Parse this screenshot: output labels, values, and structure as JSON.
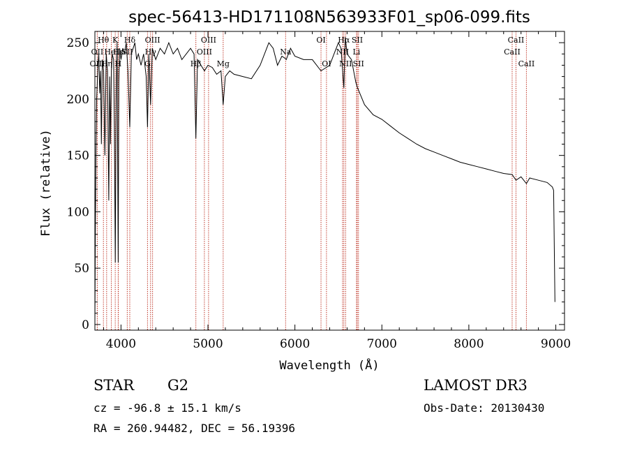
{
  "chart_data": {
    "type": "line",
    "title": "spec-56413-HD171108N563933F01_sp06-099.fits",
    "xlabel": "Wavelength (Å)",
    "ylabel": "Flux (relative)",
    "xlim": [
      3700,
      9100
    ],
    "ylim": [
      -5,
      260
    ],
    "xticks": [
      4000,
      5000,
      6000,
      7000,
      8000,
      9000
    ],
    "xtick_labels": [
      "4000",
      "5000",
      "6000",
      "7000",
      "8000",
      "9000"
    ],
    "yticks": [
      0,
      50,
      100,
      150,
      200,
      250
    ],
    "ytick_labels": [
      "0",
      "50",
      "100",
      "150",
      "200",
      "250"
    ],
    "series": [
      {
        "name": "spectrum",
        "x": [
          3700,
          3705,
          3712,
          3720,
          3728,
          3735,
          3745,
          3755,
          3765,
          3775,
          3785,
          3800,
          3815,
          3830,
          3845,
          3860,
          3870,
          3880,
          3889,
          3900,
          3915,
          3925,
          3934,
          3945,
          3955,
          3968,
          3975,
          3985,
          4000,
          4020,
          4040,
          4060,
          4080,
          4101,
          4120,
          4140,
          4160,
          4180,
          4200,
          4230,
          4260,
          4290,
          4305,
          4320,
          4340,
          4360,
          4400,
          4450,
          4500,
          4550,
          4600,
          4650,
          4700,
          4750,
          4800,
          4840,
          4861,
          4880,
          4920,
          4960,
          5000,
          5050,
          5100,
          5150,
          5175,
          5200,
          5250,
          5300,
          5400,
          5500,
          5600,
          5700,
          5750,
          5800,
          5850,
          5890,
          5900,
          5950,
          6000,
          6100,
          6200,
          6300,
          6400,
          6450,
          6500,
          6530,
          6563,
          6580,
          6600,
          6650,
          6700,
          6720,
          6800,
          6900,
          7000,
          7100,
          7200,
          7300,
          7400,
          7500,
          7600,
          7700,
          7800,
          7900,
          8000,
          8100,
          8200,
          8300,
          8400,
          8498,
          8542,
          8600,
          8662,
          8700,
          8800,
          8900,
          8960,
          8975,
          8990
        ],
        "values": [
          0,
          80,
          150,
          200,
          215,
          230,
          240,
          205,
          225,
          160,
          235,
          225,
          150,
          240,
          225,
          110,
          220,
          160,
          225,
          240,
          235,
          170,
          55,
          205,
          250,
          55,
          215,
          245,
          235,
          245,
          240,
          250,
          225,
          175,
          240,
          245,
          250,
          235,
          240,
          230,
          240,
          220,
          175,
          240,
          195,
          245,
          235,
          245,
          240,
          250,
          240,
          245,
          235,
          240,
          245,
          240,
          165,
          235,
          230,
          225,
          230,
          228,
          222,
          225,
          195,
          220,
          225,
          222,
          220,
          218,
          230,
          250,
          245,
          230,
          238,
          236,
          235,
          245,
          238,
          235,
          235,
          225,
          230,
          240,
          250,
          245,
          210,
          255,
          240,
          235,
          215,
          210,
          195,
          186,
          182,
          176,
          170,
          165,
          160,
          156,
          153,
          150,
          147,
          144,
          142,
          140,
          138,
          136,
          134,
          133,
          128,
          131,
          125,
          130,
          128,
          126,
          122,
          119,
          20
        ]
      }
    ],
    "line_markers": [
      {
        "label": "Hθ",
        "wavelength": 3798,
        "row": 1
      },
      {
        "label": "OII",
        "wavelength": 3727,
        "row": 2
      },
      {
        "label": "OIII",
        "wavelength": 3728,
        "row": 3
      },
      {
        "label": "K",
        "wavelength": 3934,
        "row": 1
      },
      {
        "label": "HeI",
        "wavelength": 3889,
        "row": 2
      },
      {
        "label": "Hη",
        "wavelength": 3835,
        "row": 3
      },
      {
        "label": "Hε",
        "wavelength": 3970,
        "row": 2
      },
      {
        "label": "H",
        "wavelength": 3968,
        "row": 3
      },
      {
        "label": "Hδ",
        "wavelength": 4101,
        "row": 1
      },
      {
        "label": "SII",
        "wavelength": 4072,
        "row": 2
      },
      {
        "label": "OIII",
        "wavelength": 4363,
        "row": 1
      },
      {
        "label": "Hγ",
        "wavelength": 4340,
        "row": 2
      },
      {
        "label": "G",
        "wavelength": 4305,
        "row": 3
      },
      {
        "label": "OIII",
        "wavelength": 5007,
        "row": 1
      },
      {
        "label": "OIII",
        "wavelength": 4959,
        "row": 2
      },
      {
        "label": "Hβ",
        "wavelength": 4861,
        "row": 3
      },
      {
        "label": "Mg",
        "wavelength": 5175,
        "row": 3
      },
      {
        "label": "Na",
        "wavelength": 5893,
        "row": 2
      },
      {
        "label": "OI",
        "wavelength": 6300,
        "row": 1
      },
      {
        "label": "OI",
        "wavelength": 6363,
        "row": 3
      },
      {
        "label": "Hα",
        "wavelength": 6563,
        "row": 1
      },
      {
        "label": "NII",
        "wavelength": 6548,
        "row": 2
      },
      {
        "label": "NII",
        "wavelength": 6583,
        "row": 3
      },
      {
        "label": "SII",
        "wavelength": 6717,
        "row": 1
      },
      {
        "label": "Li",
        "wavelength": 6708,
        "row": 2
      },
      {
        "label": "SII",
        "wavelength": 6731,
        "row": 3
      },
      {
        "label": "CaII",
        "wavelength": 8542,
        "row": 1
      },
      {
        "label": "CaII",
        "wavelength": 8498,
        "row": 2
      },
      {
        "label": "CaII",
        "wavelength": 8662,
        "row": 3
      }
    ]
  },
  "info": {
    "object_class": "STAR",
    "subclass": "G2",
    "survey": "LAMOST DR3",
    "redshift_text": "cz = -96.8 ± 15.1 km/s",
    "obs_date_text": "Obs-Date: 20130430",
    "coords_text": "RA = 260.94482, DEC =  56.19396"
  },
  "colors": {
    "marker": "#c0392b",
    "spectrum": "#000000"
  }
}
